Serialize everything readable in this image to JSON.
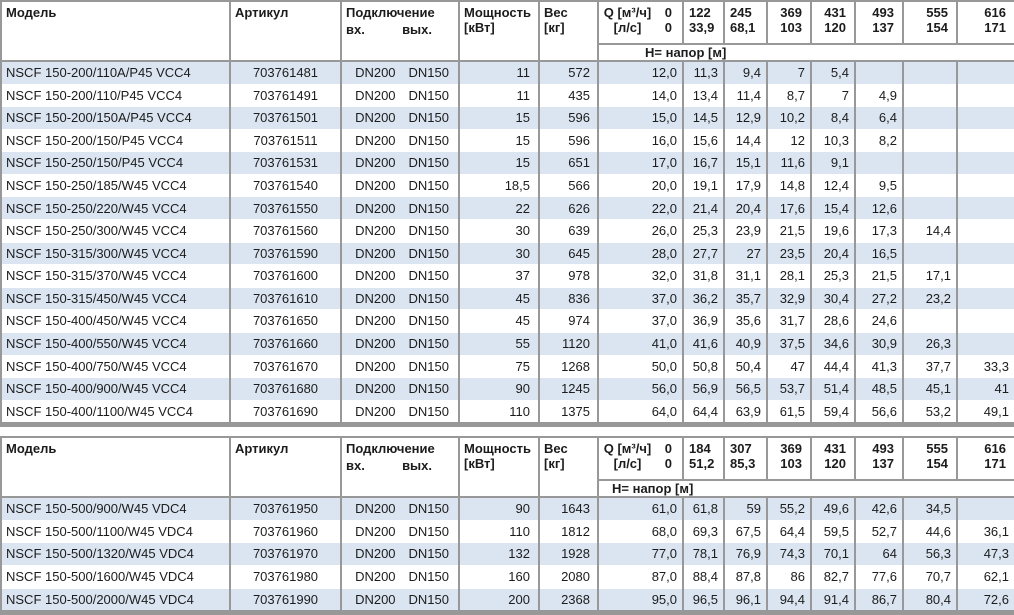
{
  "colors": {
    "row_stripe": "#dbe5f1",
    "border": "#989898"
  },
  "tables": [
    {
      "col_headers": {
        "model": "Модель",
        "article": "Артикул",
        "connection": "Подключение",
        "inlet": "вх.",
        "outlet": "вых.",
        "power_l1": "Мощность",
        "power_l2": "[кВт]",
        "weight_l1": "Вес",
        "weight_l2": "[кг]",
        "q_row1_label": "Q [м³/ч]",
        "q_row1_value": "0",
        "q_row2_label": "[л/с]",
        "q_row2_value": "0",
        "head_label": "H= напор [м]"
      },
      "flow_columns": [
        {
          "m3h": "122",
          "ls": "33,9"
        },
        {
          "m3h": "245",
          "ls": "68,1"
        },
        {
          "m3h": "369",
          "ls": "103"
        },
        {
          "m3h": "431",
          "ls": "120"
        },
        {
          "m3h": "493",
          "ls": "137"
        },
        {
          "m3h": "555",
          "ls": "154"
        },
        {
          "m3h": "616",
          "ls": "171"
        }
      ],
      "rows": [
        {
          "model": "NSCF 150-200/110A/P45 VCC4",
          "article": "703761481",
          "dn_in": "DN200",
          "dn_out": "DN150",
          "power": "11",
          "weight": "572",
          "heads": [
            "12,0",
            "11,3",
            "9,4",
            "7",
            "5,4",
            "",
            "",
            ""
          ]
        },
        {
          "model": "NSCF 150-200/110/P45 VCC4",
          "article": "703761491",
          "dn_in": "DN200",
          "dn_out": "DN150",
          "power": "11",
          "weight": "435",
          "heads": [
            "14,0",
            "13,4",
            "11,4",
            "8,7",
            "7",
            "4,9",
            "",
            ""
          ]
        },
        {
          "model": "NSCF 150-200/150A/P45 VCC4",
          "article": "703761501",
          "dn_in": "DN200",
          "dn_out": "DN150",
          "power": "15",
          "weight": "596",
          "heads": [
            "15,0",
            "14,5",
            "12,9",
            "10,2",
            "8,4",
            "6,4",
            "",
            ""
          ]
        },
        {
          "model": "NSCF 150-200/150/P45 VCC4",
          "article": "703761511",
          "dn_in": "DN200",
          "dn_out": "DN150",
          "power": "15",
          "weight": "596",
          "heads": [
            "16,0",
            "15,6",
            "14,4",
            "12",
            "10,3",
            "8,2",
            "",
            ""
          ]
        },
        {
          "model": "NSCF 150-250/150/P45 VCC4",
          "article": "703761531",
          "dn_in": "DN200",
          "dn_out": "DN150",
          "power": "15",
          "weight": "651",
          "heads": [
            "17,0",
            "16,7",
            "15,1",
            "11,6",
            "9,1",
            "",
            "",
            ""
          ]
        },
        {
          "model": "NSCF 150-250/185/W45 VCC4",
          "article": "703761540",
          "dn_in": "DN200",
          "dn_out": "DN150",
          "power": "18,5",
          "weight": "566",
          "heads": [
            "20,0",
            "19,1",
            "17,9",
            "14,8",
            "12,4",
            "9,5",
            "",
            ""
          ]
        },
        {
          "model": "NSCF 150-250/220/W45 VCC4",
          "article": "703761550",
          "dn_in": "DN200",
          "dn_out": "DN150",
          "power": "22",
          "weight": "626",
          "heads": [
            "22,0",
            "21,4",
            "20,4",
            "17,6",
            "15,4",
            "12,6",
            "",
            ""
          ]
        },
        {
          "model": "NSCF 150-250/300/W45 VCC4",
          "article": "703761560",
          "dn_in": "DN200",
          "dn_out": "DN150",
          "power": "30",
          "weight": "639",
          "heads": [
            "26,0",
            "25,3",
            "23,9",
            "21,5",
            "19,6",
            "17,3",
            "14,4",
            ""
          ]
        },
        {
          "model": "NSCF 150-315/300/W45 VCC4",
          "article": "703761590",
          "dn_in": "DN200",
          "dn_out": "DN150",
          "power": "30",
          "weight": "645",
          "heads": [
            "28,0",
            "27,7",
            "27",
            "23,5",
            "20,4",
            "16,5",
            "",
            ""
          ]
        },
        {
          "model": "NSCF 150-315/370/W45 VCC4",
          "article": "703761600",
          "dn_in": "DN200",
          "dn_out": "DN150",
          "power": "37",
          "weight": "978",
          "heads": [
            "32,0",
            "31,8",
            "31,1",
            "28,1",
            "25,3",
            "21,5",
            "17,1",
            ""
          ]
        },
        {
          "model": "NSCF 150-315/450/W45 VCC4",
          "article": "703761610",
          "dn_in": "DN200",
          "dn_out": "DN150",
          "power": "45",
          "weight": "836",
          "heads": [
            "37,0",
            "36,2",
            "35,7",
            "32,9",
            "30,4",
            "27,2",
            "23,2",
            ""
          ]
        },
        {
          "model": "NSCF 150-400/450/W45 VCC4",
          "article": "703761650",
          "dn_in": "DN200",
          "dn_out": "DN150",
          "power": "45",
          "weight": "974",
          "heads": [
            "37,0",
            "36,9",
            "35,6",
            "31,7",
            "28,6",
            "24,6",
            "",
            ""
          ]
        },
        {
          "model": "NSCF 150-400/550/W45 VCC4",
          "article": "703761660",
          "dn_in": "DN200",
          "dn_out": "DN150",
          "power": "55",
          "weight": "1120",
          "heads": [
            "41,0",
            "41,6",
            "40,9",
            "37,5",
            "34,6",
            "30,9",
            "26,3",
            ""
          ]
        },
        {
          "model": "NSCF 150-400/750/W45 VCC4",
          "article": "703761670",
          "dn_in": "DN200",
          "dn_out": "DN150",
          "power": "75",
          "weight": "1268",
          "heads": [
            "50,0",
            "50,8",
            "50,4",
            "47",
            "44,4",
            "41,3",
            "37,7",
            "33,3"
          ]
        },
        {
          "model": "NSCF 150-400/900/W45 VCC4",
          "article": "703761680",
          "dn_in": "DN200",
          "dn_out": "DN150",
          "power": "90",
          "weight": "1245",
          "heads": [
            "56,0",
            "56,9",
            "56,5",
            "53,7",
            "51,4",
            "48,5",
            "45,1",
            "41"
          ]
        },
        {
          "model": "NSCF 150-400/1100/W45 VCC4",
          "article": "703761690",
          "dn_in": "DN200",
          "dn_out": "DN150",
          "power": "110",
          "weight": "1375",
          "heads": [
            "64,0",
            "64,4",
            "63,9",
            "61,5",
            "59,4",
            "56,6",
            "53,2",
            "49,1"
          ]
        }
      ]
    },
    {
      "col_headers": {
        "model": "Модель",
        "article": "Артикул",
        "connection": "Подключение",
        "inlet": "вх.",
        "outlet": "вых.",
        "power_l1": "Мощность",
        "power_l2": "[кВт]",
        "weight_l1": "Вес",
        "weight_l2": "[кг]",
        "q_row1_label": "Q [м³/ч]",
        "q_row1_value": "0",
        "q_row2_label": "[л/с]",
        "q_row2_value": "0",
        "head_label": "H= напор [м]"
      },
      "flow_columns": [
        {
          "m3h": "184",
          "ls": "51,2"
        },
        {
          "m3h": "307",
          "ls": "85,3"
        },
        {
          "m3h": "369",
          "ls": "103"
        },
        {
          "m3h": "431",
          "ls": "120"
        },
        {
          "m3h": "493",
          "ls": "137"
        },
        {
          "m3h": "555",
          "ls": "154"
        },
        {
          "m3h": "616",
          "ls": "171"
        }
      ],
      "rows": [
        {
          "model": "NSCF 150-500/900/W45 VDC4",
          "article": "703761950",
          "dn_in": "DN200",
          "dn_out": "DN150",
          "power": "90",
          "weight": "1643",
          "heads": [
            "61,0",
            "61,8",
            "59",
            "55,2",
            "49,6",
            "42,6",
            "34,5",
            ""
          ]
        },
        {
          "model": "NSCF 150-500/1100/W45 VDC4",
          "article": "703761960",
          "dn_in": "DN200",
          "dn_out": "DN150",
          "power": "110",
          "weight": "1812",
          "heads": [
            "68,0",
            "69,3",
            "67,5",
            "64,4",
            "59,5",
            "52,7",
            "44,6",
            "36,1"
          ]
        },
        {
          "model": "NSCF 150-500/1320/W45 VDC4",
          "article": "703761970",
          "dn_in": "DN200",
          "dn_out": "DN150",
          "power": "132",
          "weight": "1928",
          "heads": [
            "77,0",
            "78,1",
            "76,9",
            "74,3",
            "70,1",
            "64",
            "56,3",
            "47,3"
          ]
        },
        {
          "model": "NSCF 150-500/1600/W45 VDC4",
          "article": "703761980",
          "dn_in": "DN200",
          "dn_out": "DN150",
          "power": "160",
          "weight": "2080",
          "heads": [
            "87,0",
            "88,4",
            "87,8",
            "86",
            "82,7",
            "77,6",
            "70,7",
            "62,1"
          ]
        },
        {
          "model": "NSCF 150-500/2000/W45 VDC4",
          "article": "703761990",
          "dn_in": "DN200",
          "dn_out": "DN150",
          "power": "200",
          "weight": "2368",
          "heads": [
            "95,0",
            "96,5",
            "96,1",
            "94,4",
            "91,4",
            "86,7",
            "80,4",
            "72,6"
          ]
        }
      ]
    }
  ]
}
